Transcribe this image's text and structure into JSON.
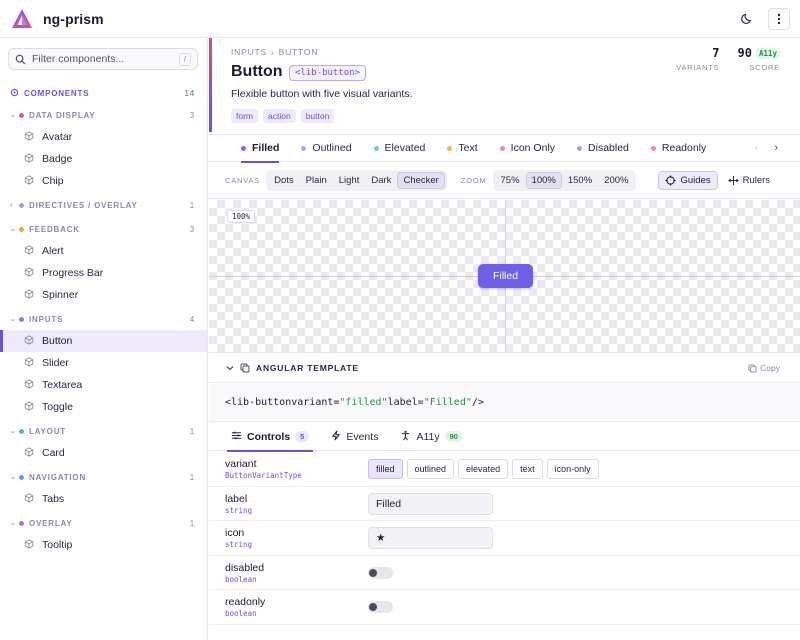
{
  "app": {
    "title": "ng-prism"
  },
  "search": {
    "placeholder": "Filter components...",
    "shortcut": "/"
  },
  "nav": {
    "root": {
      "label": "COMPONENTS",
      "count": "14"
    },
    "groups": [
      {
        "label": "DATA DISPLAY",
        "count": "3",
        "color": "#e05a9a",
        "expanded": true,
        "items": [
          "Avatar",
          "Badge",
          "Chip"
        ]
      },
      {
        "label": "DIRECTIVES / OVERLAY",
        "count": "1",
        "color": "#b29ad8",
        "expanded": false,
        "items": []
      },
      {
        "label": "FEEDBACK",
        "count": "3",
        "color": "#f2a93b",
        "expanded": true,
        "items": [
          "Alert",
          "Progress Bar",
          "Spinner"
        ]
      },
      {
        "label": "INPUTS",
        "count": "4",
        "color": "#8c7ce8",
        "expanded": true,
        "items": [
          "Button",
          "Slider",
          "Textarea",
          "Toggle"
        ]
      },
      {
        "label": "LAYOUT",
        "count": "1",
        "color": "#4cc38a",
        "expanded": true,
        "items": [
          "Card"
        ]
      },
      {
        "label": "NAVIGATION",
        "count": "1",
        "color": "#5b9bf0",
        "expanded": true,
        "items": [
          "Tabs"
        ]
      },
      {
        "label": "OVERLAY",
        "count": "1",
        "color": "#b76fd6",
        "expanded": true,
        "items": [
          "Tooltip"
        ]
      }
    ],
    "active_item": "Button"
  },
  "header": {
    "breadcrumb": [
      "INPUTS",
      "BUTTON"
    ],
    "title": "Button",
    "selector": "<lib-button>",
    "description": "Flexible button with five visual variants.",
    "tags": [
      "form",
      "action",
      "button"
    ],
    "stats": [
      {
        "value": "7",
        "label": "VARIANTS",
        "badge": ""
      },
      {
        "value": "90",
        "label": "SCORE",
        "badge": "A11y"
      }
    ]
  },
  "variants": [
    {
      "label": "Filled",
      "color": "#7b6cf0",
      "active": true
    },
    {
      "label": "Outlined",
      "color": "#9bb0e8",
      "active": false
    },
    {
      "label": "Elevated",
      "color": "#6fd0b5",
      "active": false
    },
    {
      "label": "Text",
      "color": "#f2b65c",
      "active": false
    },
    {
      "label": "Icon Only",
      "color": "#e889b0",
      "active": false
    },
    {
      "label": "Disabled",
      "color": "#a8a4bd",
      "active": false
    },
    {
      "label": "Readonly",
      "color": "#e889b0",
      "active": false
    }
  ],
  "toolbar": {
    "canvas_label": "CANVAS",
    "canvas_options": [
      "Dots",
      "Plain",
      "Light",
      "Dark",
      "Checker"
    ],
    "canvas_selected": "Checker",
    "zoom_label": "ZOOM",
    "zoom_options": [
      "75%",
      "100%",
      "150%",
      "200%"
    ],
    "zoom_selected": "100%",
    "guides_label": "Guides",
    "rulers_label": "Rulers"
  },
  "canvas": {
    "zoom_badge": "100%",
    "preview_label": "Filled"
  },
  "template": {
    "title": "ANGULAR TEMPLATE",
    "copy_label": "Copy",
    "code": {
      "open": "<lib-button",
      "attr1": " variant=",
      "val1": "\"filled\"",
      "attr2": " label=",
      "val2": "\"Filled\"",
      "close": " />"
    }
  },
  "panel_tabs": [
    {
      "label": "Controls",
      "badge": "5",
      "badge_style": "purple",
      "icon": "sliders-icon",
      "active": true
    },
    {
      "label": "Events",
      "badge": "",
      "badge_style": "",
      "icon": "lightning-icon",
      "active": false
    },
    {
      "label": "A11y",
      "badge": "90",
      "badge_style": "green",
      "icon": "accessibility-icon",
      "active": false
    }
  ],
  "controls": [
    {
      "name": "variant",
      "type": "ButtonVariantType",
      "kind": "chips",
      "options": [
        "filled",
        "outlined",
        "elevated",
        "text",
        "icon-only"
      ],
      "selected": "filled"
    },
    {
      "name": "label",
      "type": "string",
      "kind": "text",
      "value": "Filled"
    },
    {
      "name": "icon",
      "type": "string",
      "kind": "text",
      "value": "★"
    },
    {
      "name": "disabled",
      "type": "boolean",
      "kind": "toggle",
      "value": false
    },
    {
      "name": "readonly",
      "type": "boolean",
      "kind": "toggle",
      "value": false
    }
  ]
}
